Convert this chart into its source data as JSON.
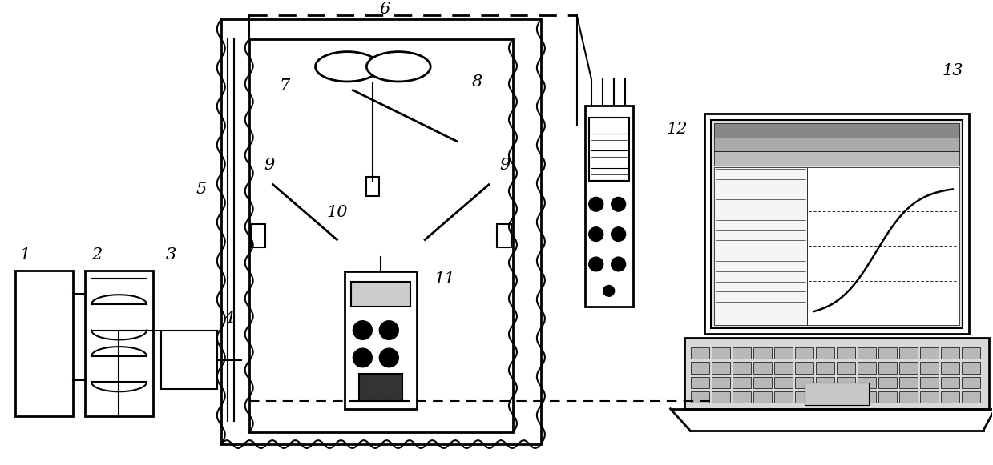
{
  "bg_color": "#ffffff",
  "line_color": "#000000",
  "label_fontsize": 16,
  "fig_width": 12.39,
  "fig_height": 5.81
}
